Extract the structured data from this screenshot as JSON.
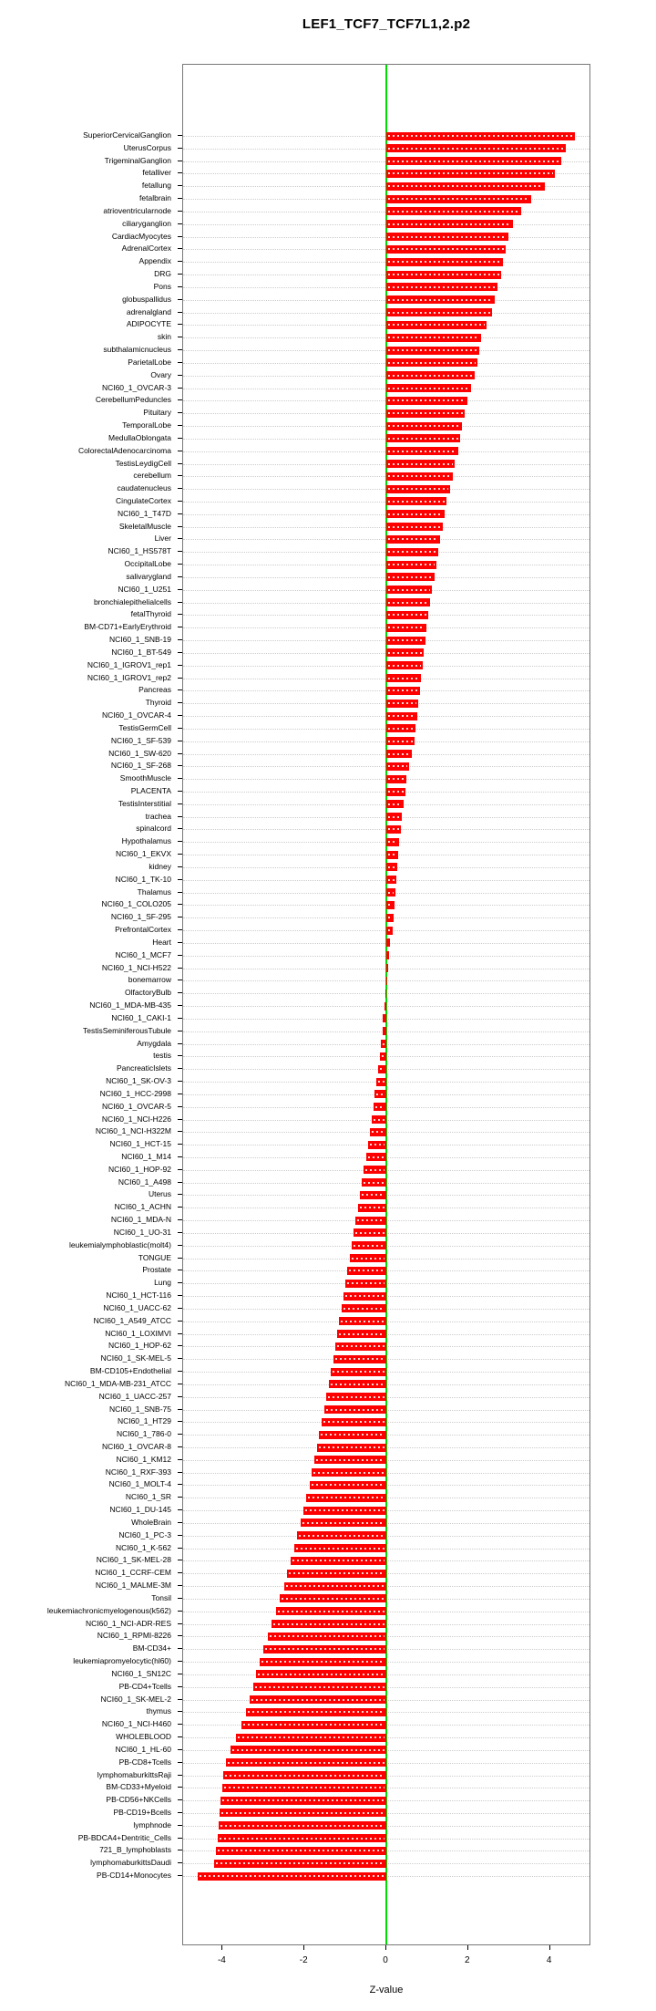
{
  "title": "LEF1_TCF7_TCF7L1,2.p2",
  "chart_data": {
    "type": "bar",
    "orientation": "horizontal",
    "title": "LEF1_TCF7_TCF7L1,2.p2",
    "xlabel": "Z-value",
    "xlim": [
      -5,
      5
    ],
    "xticks": [
      -4,
      -2,
      0,
      2,
      4
    ],
    "grid": "dotted-horizontal-per-row",
    "zero_line_color": "#00dd00",
    "bar_color": "#ff0000",
    "categories": [
      "SuperiorCervicalGanglion",
      "UterusCorpus",
      "TrigeminalGanglion",
      "fetalliver",
      "fetallung",
      "fetalbrain",
      "atrioventricularnode",
      "ciliaryganglion",
      "CardiacMyocytes",
      "AdrenalCortex",
      "Appendix",
      "DRG",
      "Pons",
      "globuspallidus",
      "adrenalgland",
      "ADIPOCYTE",
      "skin",
      "subthalamicnucleus",
      "ParietalLobe",
      "Ovary",
      "NCI60_1_OVCAR-3",
      "CerebellumPeduncles",
      "Pituitary",
      "TemporalLobe",
      "MedullaOblongata",
      "ColorectalAdenocarcinoma",
      "TestisLeydigCell",
      "cerebellum",
      "caudatenucleus",
      "CingulateCortex",
      "NCI60_1_T47D",
      "SkeletalMuscle",
      "Liver",
      "NCI60_1_HS578T",
      "OccipitalLobe",
      "salivarygland",
      "NCI60_1_U251",
      "bronchialepithelialcells",
      "fetalThyroid",
      "BM-CD71+EarlyErythroid",
      "NCI60_1_SNB-19",
      "NCI60_1_BT-549",
      "NCI60_1_IGROV1_rep1",
      "NCI60_1_IGROV1_rep2",
      "Pancreas",
      "Thyroid",
      "NCI60_1_OVCAR-4",
      "TestisGermCell",
      "NCI60_1_SF-539",
      "NCI60_1_SW-620",
      "NCI60_1_SF-268",
      "SmoothMuscle",
      "PLACENTA",
      "TestisInterstitial",
      "trachea",
      "spinalcord",
      "Hypothalamus",
      "NCI60_1_EKVX",
      "kidney",
      "NCI60_1_TK-10",
      "Thalamus",
      "NCI60_1_COLO205",
      "NCI60_1_SF-295",
      "PrefrontalCortex",
      "Heart",
      "NCI60_1_MCF7",
      "NCI60_1_NCI-H522",
      "bonemarrow",
      "OlfactoryBulb",
      "NCI60_1_MDA-MB-435",
      "NCI60_1_CAKI-1",
      "TestisSeminiferousTubule",
      "Amygdala",
      "testis",
      "PancreaticIslets",
      "NCI60_1_SK-OV-3",
      "NCI60_1_HCC-2998",
      "NCI60_1_OVCAR-5",
      "NCI60_1_NCI-H226",
      "NCI60_1_NCI-H322M",
      "NCI60_1_HCT-15",
      "NCI60_1_M14",
      "NCI60_1_HOP-92",
      "NCI60_1_A498",
      "Uterus",
      "NCI60_1_ACHN",
      "NCI60_1_MDA-N",
      "NCI60_1_UO-31",
      "leukemialymphoblastic(molt4)",
      "TONGUE",
      "Prostate",
      "Lung",
      "NCI60_1_HCT-116",
      "NCI60_1_UACC-62",
      "NCI60_1_A549_ATCC",
      "NCI60_1_LOXIMVI",
      "NCI60_1_HOP-62",
      "NCI60_1_SK-MEL-5",
      "BM-CD105+Endothelial",
      "NCI60_1_MDA-MB-231_ATCC",
      "NCI60_1_UACC-257",
      "NCI60_1_SNB-75",
      "NCI60_1_HT29",
      "NCI60_1_786-0",
      "NCI60_1_OVCAR-8",
      "NCI60_1_KM12",
      "NCI60_1_RXF-393",
      "NCI60_1_MOLT-4",
      "NCI60_1_SR",
      "NCI60_1_DU-145",
      "WholeBrain",
      "NCI60_1_PC-3",
      "NCI60_1_K-562",
      "NCI60_1_SK-MEL-28",
      "NCI60_1_CCRF-CEM",
      "NCI60_1_MALME-3M",
      "Tonsil",
      "leukemiachronicmyelogenous(k562)",
      "NCI60_1_NCI-ADR-RES",
      "NCI60_1_RPMI-8226",
      "BM-CD34+",
      "leukemiapromyelocytic(hl60)",
      "NCI60_1_SN12C",
      "PB-CD4+Tcells",
      "NCI60_1_SK-MEL-2",
      "thymus",
      "NCI60_1_NCI-H460",
      "WHOLEBLOOD",
      "NCI60_1_HL-60",
      "PB-CD8+Tcells",
      "lymphomaburkittsRaji",
      "BM-CD33+Myeloid",
      "PB-CD56+NKCells",
      "PB-CD19+Bcells",
      "lymphnode",
      "PB-BDCA4+Dentritic_Cells",
      "721_B_lymphoblasts",
      "lymphomaburkittsDaudi",
      "PB-CD14+Monocytes"
    ],
    "values": [
      4.62,
      4.38,
      4.28,
      4.12,
      3.88,
      3.55,
      3.3,
      3.1,
      2.98,
      2.92,
      2.85,
      2.8,
      2.72,
      2.65,
      2.58,
      2.45,
      2.32,
      2.28,
      2.22,
      2.15,
      2.08,
      1.98,
      1.92,
      1.85,
      1.8,
      1.75,
      1.68,
      1.62,
      1.55,
      1.48,
      1.42,
      1.38,
      1.32,
      1.28,
      1.22,
      1.18,
      1.12,
      1.08,
      1.02,
      0.98,
      0.95,
      0.92,
      0.88,
      0.85,
      0.82,
      0.78,
      0.75,
      0.72,
      0.68,
      0.62,
      0.55,
      0.5,
      0.46,
      0.42,
      0.38,
      0.35,
      0.32,
      0.28,
      0.26,
      0.24,
      0.22,
      0.2,
      0.18,
      0.15,
      0.1,
      0.06,
      0.04,
      0.02,
      -0.03,
      -0.05,
      -0.08,
      -0.1,
      -0.13,
      -0.16,
      -0.2,
      -0.24,
      -0.28,
      -0.32,
      -0.36,
      -0.4,
      -0.45,
      -0.5,
      -0.55,
      -0.6,
      -0.65,
      -0.7,
      -0.75,
      -0.8,
      -0.85,
      -0.9,
      -0.95,
      -1.0,
      -1.05,
      -1.1,
      -1.15,
      -1.2,
      -1.25,
      -1.3,
      -1.35,
      -1.4,
      -1.46,
      -1.52,
      -1.58,
      -1.64,
      -1.7,
      -1.76,
      -1.82,
      -1.88,
      -1.95,
      -2.02,
      -2.1,
      -2.18,
      -2.26,
      -2.34,
      -2.42,
      -2.5,
      -2.6,
      -2.7,
      -2.8,
      -2.9,
      -3.0,
      -3.1,
      -3.18,
      -3.26,
      -3.34,
      -3.42,
      -3.55,
      -3.68,
      -3.8,
      -3.92,
      -3.98,
      -4.02,
      -4.06,
      -4.08,
      -4.1,
      -4.13,
      -4.17,
      -4.22,
      -4.6
    ]
  }
}
